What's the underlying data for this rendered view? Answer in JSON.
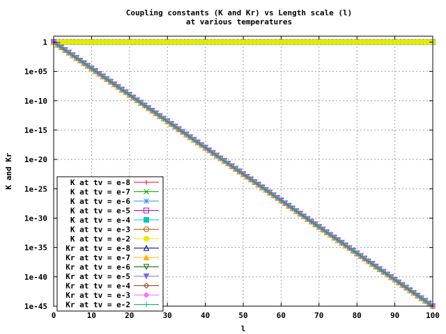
{
  "chart_data": {
    "type": "line",
    "title_line1": "Coupling constants (K and Kr) vs Length scale (l)",
    "title_line2": "at various temperatures",
    "xlabel": "l",
    "ylabel": "K and Kr",
    "xlim": [
      0,
      100
    ],
    "ylim_log10": [
      -45,
      1
    ],
    "yscale": "log",
    "grid": true,
    "legend_position": "bottom-left",
    "x_ticks": [
      "0",
      "10",
      "20",
      "30",
      "40",
      "50",
      "60",
      "70",
      "80",
      "90",
      "100"
    ],
    "y_ticks": [
      {
        "exp": 0,
        "label": "1"
      },
      {
        "exp": -5,
        "label": "1e-05"
      },
      {
        "exp": -10,
        "label": "1e-10"
      },
      {
        "exp": -15,
        "label": "1e-15"
      },
      {
        "exp": -20,
        "label": "1e-20"
      },
      {
        "exp": -25,
        "label": "1e-25"
      },
      {
        "exp": -30,
        "label": "1e-30"
      },
      {
        "exp": -35,
        "label": "1e-35"
      },
      {
        "exp": -40,
        "label": "1e-40"
      },
      {
        "exp": -45,
        "label": "1e-45"
      }
    ],
    "series": [
      {
        "name": "K at tv = e-8",
        "color": "#e8001e",
        "marker": "plus",
        "trend": "flat",
        "y_start": 1,
        "y_end": 1
      },
      {
        "name": "K at tv = e-7",
        "color": "#00a800",
        "marker": "x",
        "trend": "flat",
        "y_start": 1,
        "y_end": 1
      },
      {
        "name": "K at tv = e-6",
        "color": "#1e90ff",
        "marker": "star",
        "trend": "flat",
        "y_start": 1,
        "y_end": 1
      },
      {
        "name": "K at tv = e-5",
        "color": "#c000c0",
        "marker": "square",
        "trend": "flat",
        "y_start": 1,
        "y_end": 1
      },
      {
        "name": "K at tv = e-4",
        "color": "#00c8c8",
        "marker": "square-filled",
        "trend": "flat",
        "y_start": 1,
        "y_end": 1
      },
      {
        "name": "K at tv = e-3",
        "color": "#c85000",
        "marker": "circle",
        "trend": "flat",
        "y_start": 1,
        "y_end": 1
      },
      {
        "name": "K at tv = e-2",
        "color": "#e8e800",
        "marker": "circle-filled",
        "trend": "flat",
        "y_start": 1,
        "y_end": 1
      },
      {
        "name": "Kr at tv = e-8",
        "color": "#00008b",
        "marker": "triangle",
        "trend": "decay",
        "y_start": 1,
        "y_end": 1e-45
      },
      {
        "name": "Kr at tv = e-7",
        "color": "#ffb000",
        "marker": "triangle-filled",
        "trend": "decay",
        "y_start": 1,
        "y_end": 1e-45
      },
      {
        "name": "Kr at tv = e-6",
        "color": "#006400",
        "marker": "triangle-down",
        "trend": "decay",
        "y_start": 1,
        "y_end": 1e-45
      },
      {
        "name": "Kr at tv = e-5",
        "color": "#7b68ee",
        "marker": "triangle-down-filled",
        "trend": "decay",
        "y_start": 1,
        "y_end": 1e-45
      },
      {
        "name": "Kr at tv = e-4",
        "color": "#8b4513",
        "marker": "diamond",
        "trend": "decay",
        "y_start": 1,
        "y_end": 1e-45
      },
      {
        "name": "Kr at tv = e-3",
        "color": "#ff66ff",
        "marker": "diamond-filled",
        "trend": "decay",
        "y_start": 1,
        "y_end": 1e-45
      },
      {
        "name": "Kr at tv = e-2",
        "color": "#00b050",
        "marker": "plus",
        "trend": "decay",
        "y_start": 1,
        "y_end": 1e-45
      }
    ]
  }
}
